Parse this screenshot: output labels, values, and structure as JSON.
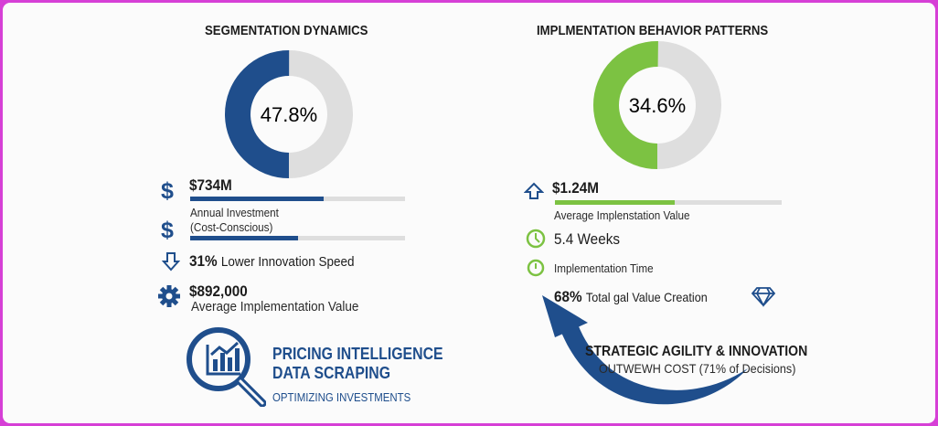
{
  "colors": {
    "blue": "#1f4e8c",
    "green": "#7cc242",
    "track": "#dedede",
    "border": "#d63fd6"
  },
  "left": {
    "title": "SEGMENTATION DYNAMICS",
    "donut": {
      "value": 47.8,
      "label": "47.8%"
    },
    "metric1": {
      "icon": "dollar-icon",
      "value": "$734M",
      "progress": 0.62
    },
    "metric2": {
      "icon": "dollar-icon",
      "label1": "Annual Investment",
      "label2": "(Cost-Conscious)",
      "progress": 0.5
    },
    "metric3": {
      "icon": "arrow-down-icon",
      "value": "31%",
      "label": "Lower Innovation Speed"
    },
    "metric4": {
      "icon": "gear-icon",
      "value": "$892,000",
      "label": "Average Implementation Value"
    },
    "brand": {
      "icon": "magnifier-chart-icon",
      "line1": "PRICING INTELLIGENCE",
      "line2": "DATA SCRAPING",
      "line3": "OPTIMIZING INVESTMENTS"
    }
  },
  "right": {
    "title": "IMPLMENTATION BEHAVIOR PATTERNS",
    "donut": {
      "value": 34.6,
      "label": "34.6%"
    },
    "metric1": {
      "icon": "arrow-up-icon",
      "value": "$1.24M",
      "label": "Average Implenstation Value",
      "progress": 0.53
    },
    "metric2": {
      "icon": "clock-icon",
      "value": "5.4 Weeks"
    },
    "metric3": {
      "icon": "timer-icon",
      "label": "Implementation Time"
    },
    "metric4": {
      "icon": "diamond-icon",
      "value": "68%",
      "label": "Total ɡal Value Creation"
    },
    "callout": {
      "icon": "curved-arrow-icon",
      "line1": "STRATEGIC AGILITY & INNOVATION",
      "line2": "OUTWEWH COST (71% of Decisions)"
    }
  }
}
